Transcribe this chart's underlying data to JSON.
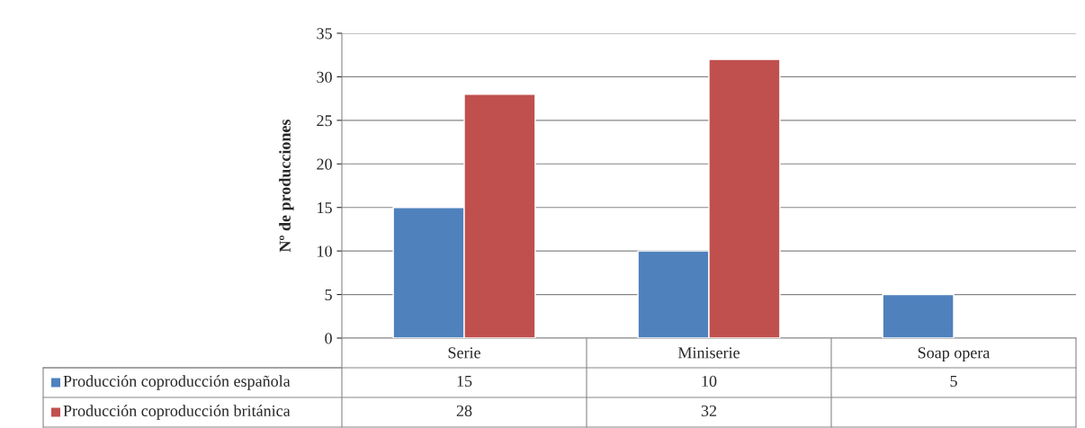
{
  "chart_data": {
    "type": "bar",
    "ylabel": "Nº de producciones",
    "categories": [
      "Serie",
      "Miniserie",
      "Soap opera"
    ],
    "series": [
      {
        "name": "Producción coproducción española",
        "color": "#4f81bd",
        "values": [
          15,
          10,
          5
        ]
      },
      {
        "name": "Producción coproducción británica",
        "color": "#c0504d",
        "values": [
          28,
          32,
          null
        ]
      }
    ],
    "ylim": [
      0,
      35
    ],
    "yticks": [
      0,
      5,
      10,
      15,
      20,
      25,
      30,
      35
    ],
    "grid": "y",
    "legend": "bottom",
    "data_labels": true
  }
}
